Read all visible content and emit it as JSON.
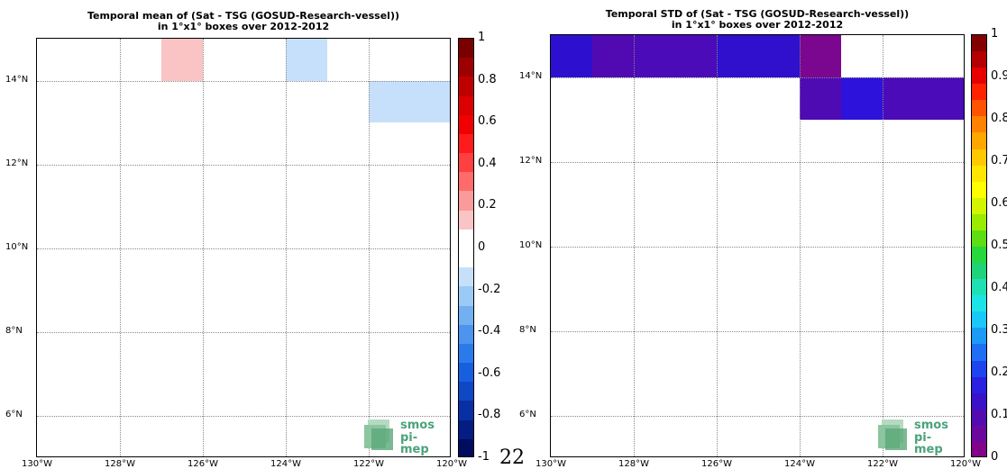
{
  "left_panel": {
    "title_line1": "Temporal mean of (Sat - TSG (GOSUD-Research-vessel))",
    "title_line2": "in 1°x1° boxes over 2012-2012",
    "x_ticks": [
      "130°W",
      "128°W",
      "126°W",
      "124°W",
      "122°W",
      "120°W"
    ],
    "y_ticks": [
      "6°N",
      "8°N",
      "10°N",
      "12°N",
      "14°N"
    ],
    "colorbar_ticks": [
      "1",
      "0.8",
      "0.6",
      "0.4",
      "0.2",
      "0",
      "-0.2",
      "-0.4",
      "-0.6",
      "-0.8",
      "-1"
    ]
  },
  "right_panel": {
    "title_line1": "Temporal STD of (Sat - TSG (GOSUD-Research-vessel))",
    "title_line2": "in 1°x1° boxes over 2012-2012",
    "x_ticks": [
      "130°W",
      "128°W",
      "126°W",
      "124°W",
      "122°W",
      "120°W"
    ],
    "y_ticks": [
      "6°N",
      "8°N",
      "10°N",
      "12°N",
      "14°N"
    ],
    "colorbar_ticks": [
      "1",
      "0.9",
      "0.8",
      "0.7",
      "0.6",
      "0.5",
      "0.4",
      "0.3",
      "0.2",
      "0.1",
      "0"
    ]
  },
  "logo": {
    "line1": "smos",
    "line2": "pi-mep"
  },
  "page_number": "22",
  "map_data": {
    "lon_range": [
      -130,
      -120
    ],
    "lat_range": [
      5,
      15
    ],
    "mean_cells": [
      {
        "lon": [
          -127,
          -126
        ],
        "lat": [
          14,
          15
        ],
        "value": 0.15,
        "color": "#fbc4c4"
      },
      {
        "lon": [
          -124,
          -123
        ],
        "lat": [
          14,
          15
        ],
        "value": -0.15,
        "color": "#c6e0fb"
      },
      {
        "lon": [
          -122,
          -120
        ],
        "lat": [
          13,
          14
        ],
        "value": -0.15,
        "color": "#c6e0fb"
      }
    ],
    "std_cells": [
      {
        "lon": [
          -130,
          -129
        ],
        "lat": [
          14,
          15
        ],
        "value": 0.15,
        "color": "#2d10cf"
      },
      {
        "lon": [
          -129,
          -128
        ],
        "lat": [
          14,
          15
        ],
        "value": 0.07,
        "color": "#5109b2"
      },
      {
        "lon": [
          -128,
          -126
        ],
        "lat": [
          14,
          15
        ],
        "value": 0.08,
        "color": "#4b0bb8"
      },
      {
        "lon": [
          -126,
          -124
        ],
        "lat": [
          14,
          15
        ],
        "value": 0.14,
        "color": "#3010cd"
      },
      {
        "lon": [
          -124,
          -123
        ],
        "lat": [
          14,
          15
        ],
        "value": 0.02,
        "color": "#7b0690"
      },
      {
        "lon": [
          -124,
          -123
        ],
        "lat": [
          13,
          14
        ],
        "value": 0.07,
        "color": "#4f0bb3"
      },
      {
        "lon": [
          -123,
          -122
        ],
        "lat": [
          13,
          14
        ],
        "value": 0.17,
        "color": "#2c12da"
      },
      {
        "lon": [
          -122,
          -120
        ],
        "lat": [
          13,
          14
        ],
        "value": 0.08,
        "color": "#4b0bb8"
      }
    ],
    "mean_colorbar": [
      "#7a0000",
      "#9d0000",
      "#bf0000",
      "#dc0000",
      "#f00000",
      "#ff1b1b",
      "#ff4040",
      "#ff6b6b",
      "#fa9a9a",
      "#fbc4c4",
      "#ffffff",
      "#ffffff",
      "#c6e0fb",
      "#9ccaf6",
      "#72b0f2",
      "#4c94ee",
      "#2b7aec",
      "#1660e0",
      "#0e48c4",
      "#082fa3",
      "#031d82",
      "#000c5e"
    ],
    "std_colorbar": [
      "#820000",
      "#b40000",
      "#e60000",
      "#ff2200",
      "#ff5300",
      "#ff8200",
      "#ffa600",
      "#ffc800",
      "#ffe600",
      "#ffff00",
      "#d2f500",
      "#9aeb00",
      "#5cde12",
      "#26d83c",
      "#1ed37a",
      "#1fe0b4",
      "#1ce4e4",
      "#18c8f8",
      "#1b9af6",
      "#1f6ef3",
      "#1e44f0",
      "#2a20e0",
      "#3a12c8",
      "#520bb0",
      "#6a089e",
      "#82038a"
    ]
  }
}
